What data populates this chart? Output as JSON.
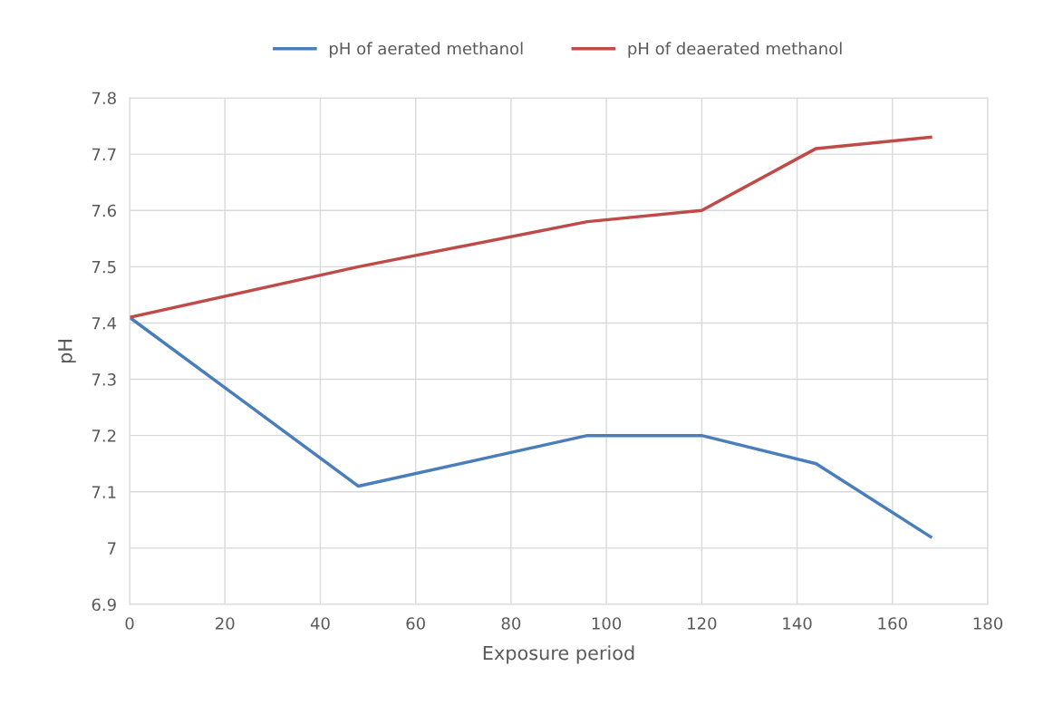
{
  "chart_data": {
    "type": "line",
    "xlabel": "Exposure period",
    "ylabel": "pH",
    "x": [
      0,
      48,
      96,
      120,
      144,
      168
    ],
    "series": [
      {
        "name": "pH of aerated methanol",
        "color": "#4a7ebb",
        "values": [
          7.41,
          7.11,
          7.2,
          7.2,
          7.15,
          7.02
        ]
      },
      {
        "name": "pH of deaerated methanol",
        "color": "#be4b48",
        "values": [
          7.41,
          7.5,
          7.58,
          7.6,
          7.71,
          7.73
        ]
      }
    ],
    "xlim": [
      0,
      180
    ],
    "xticks": [
      0,
      20,
      40,
      60,
      80,
      100,
      120,
      140,
      160,
      180
    ],
    "ylim": [
      6.9,
      7.8
    ],
    "yticks": [
      6.9,
      7,
      7.1,
      7.2,
      7.3,
      7.4,
      7.5,
      7.6,
      7.7,
      7.8
    ],
    "grid": true,
    "legend": "top",
    "marker": "none",
    "line_style": "solid"
  }
}
